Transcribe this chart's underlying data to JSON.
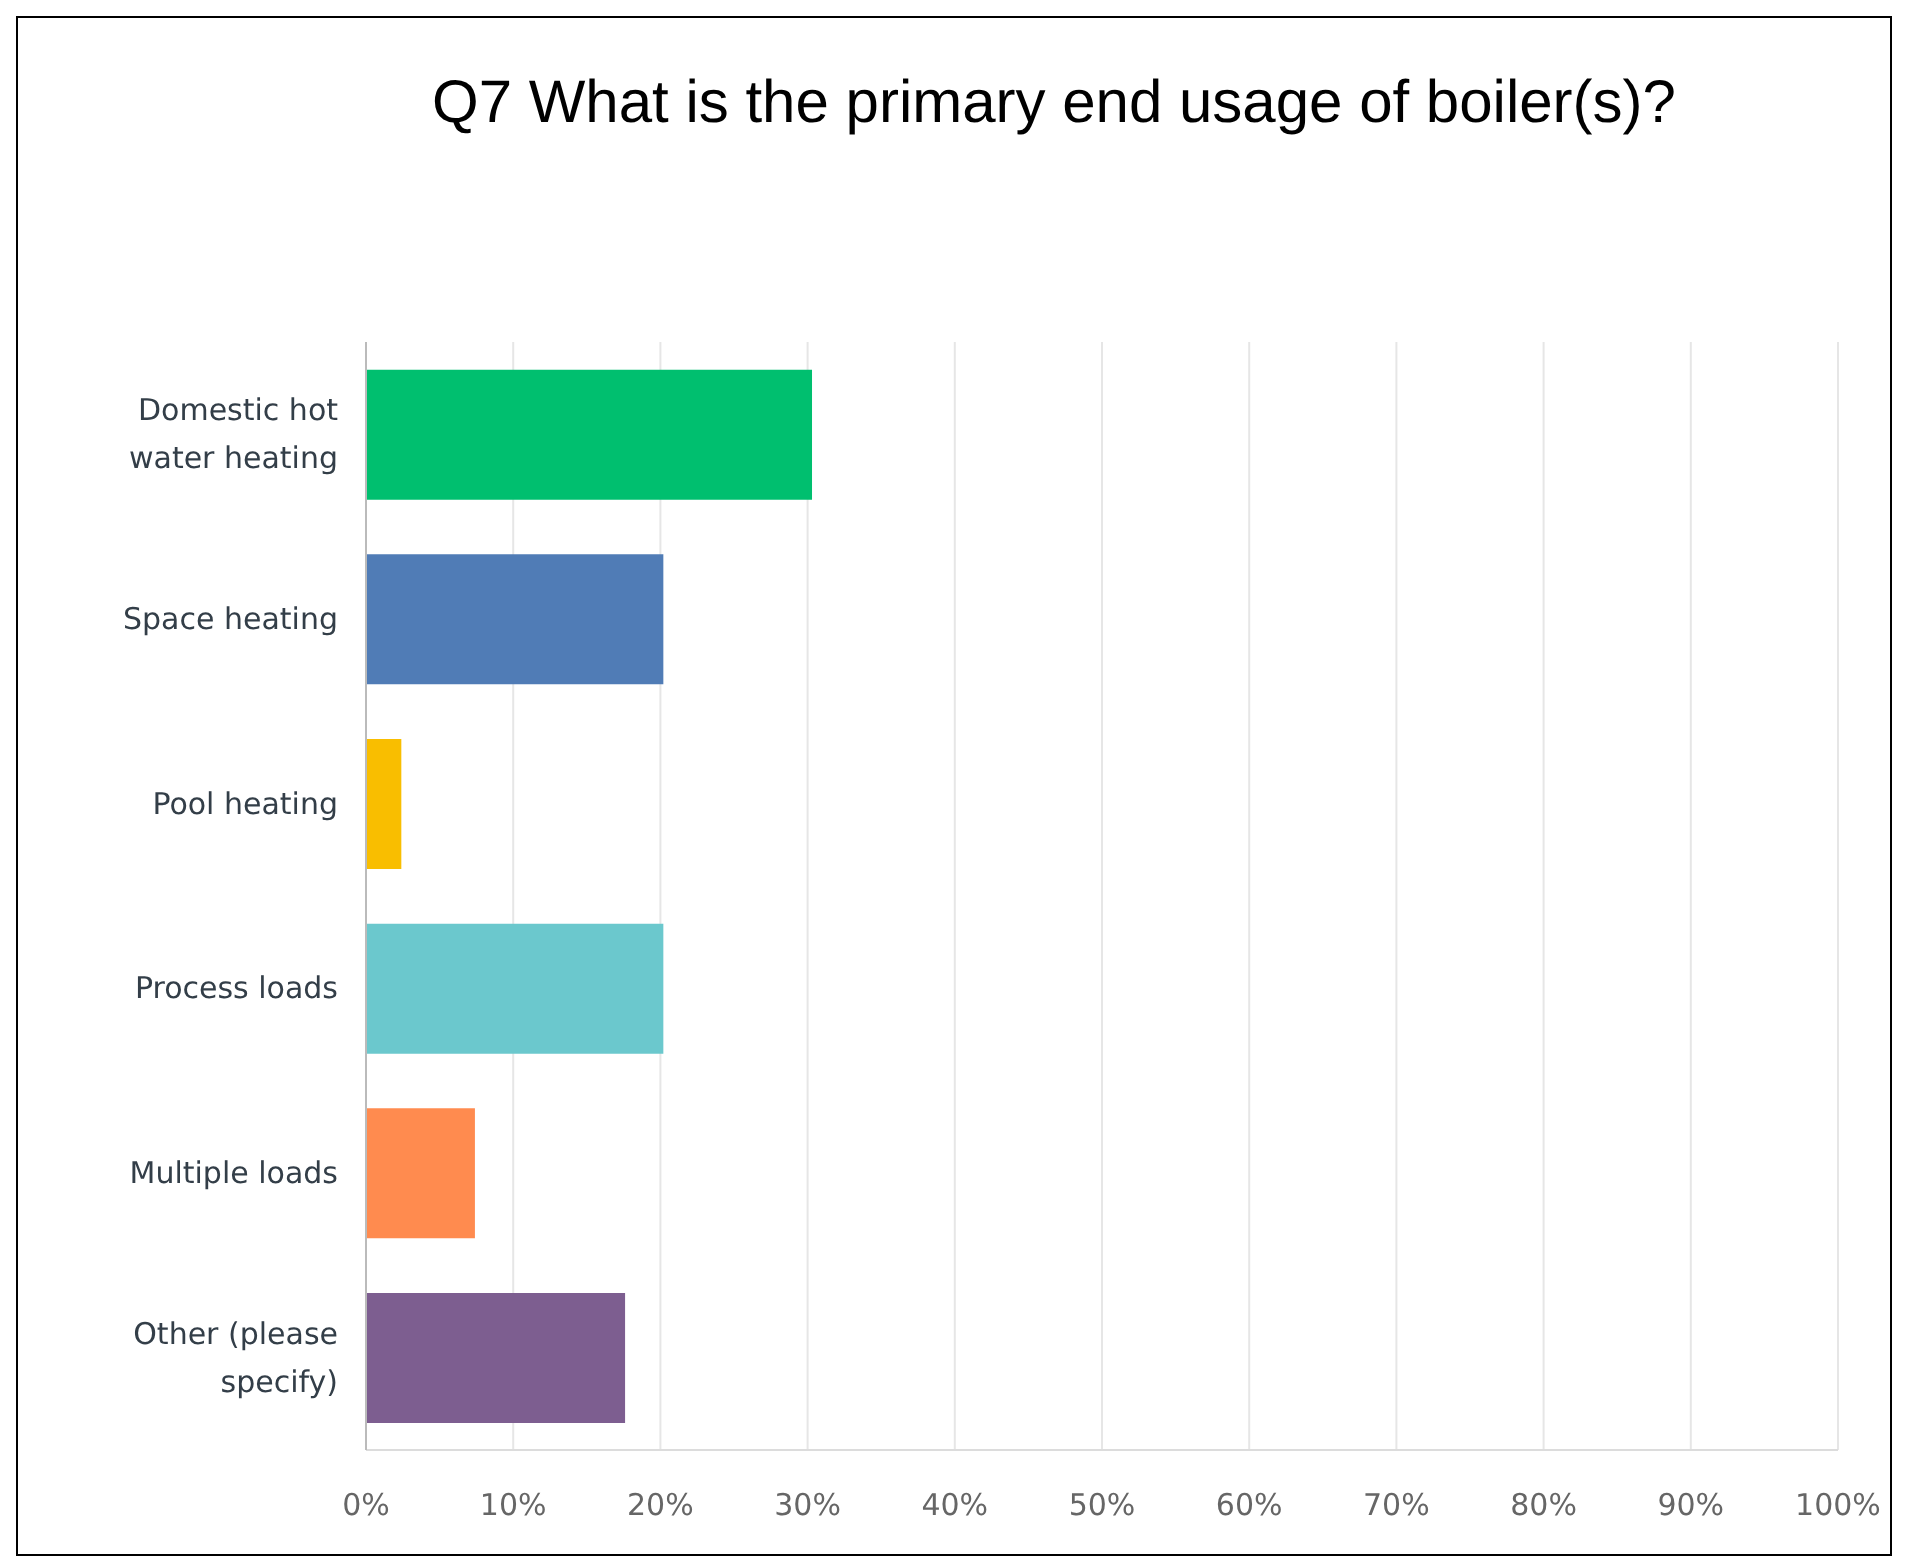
{
  "chart_data": {
    "type": "bar",
    "orientation": "horizontal",
    "title": "Q7 What is the primary end usage of boiler(s)?",
    "categories": [
      "Domestic hot water heating",
      "Space heating",
      "Pool heating",
      "Process loads",
      "Multiple loads",
      "Other (please specify)"
    ],
    "values": [
      30.3,
      20.2,
      2.4,
      20.2,
      7.4,
      17.6
    ],
    "colors": [
      "#00bf6f",
      "#507cb6",
      "#f9be00",
      "#6bc8cd",
      "#ff8b4f",
      "#7d5e90"
    ],
    "xlim": [
      0,
      100
    ],
    "xticks": [
      {
        "value": 0,
        "label": "0%"
      },
      {
        "value": 10,
        "label": "10%"
      },
      {
        "value": 20,
        "label": "20%"
      },
      {
        "value": 30,
        "label": "30%"
      },
      {
        "value": 40,
        "label": "40%"
      },
      {
        "value": 50,
        "label": "50%"
      },
      {
        "value": 60,
        "label": "60%"
      },
      {
        "value": 70,
        "label": "70%"
      },
      {
        "value": 80,
        "label": "80%"
      },
      {
        "value": 90,
        "label": "90%"
      },
      {
        "value": 100,
        "label": "100%"
      }
    ],
    "grid": "x"
  }
}
